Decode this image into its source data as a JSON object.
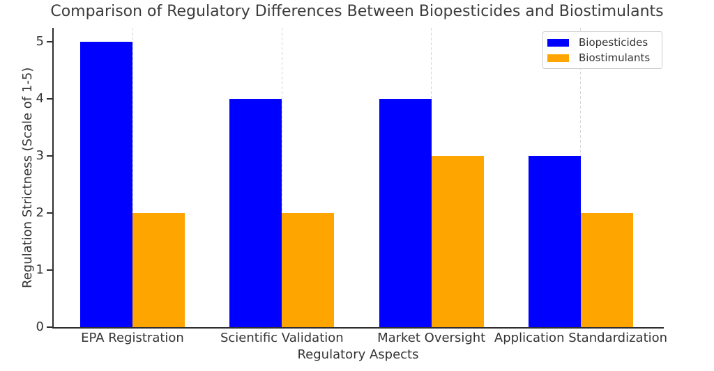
{
  "chart_data": {
    "type": "bar",
    "title": "Comparison of Regulatory Differences Between Biopesticides and Biostimulants",
    "categories": [
      "EPA Registration",
      "Scientific Validation",
      "Market Oversight",
      "Application Standardization"
    ],
    "series": [
      {
        "name": "Biopesticides",
        "color": "#0000ff",
        "values": [
          5,
          4,
          4,
          3
        ]
      },
      {
        "name": "Biostimulants",
        "color": "#ffa500",
        "values": [
          2,
          2,
          3,
          2
        ]
      }
    ],
    "xlabel": "Regulatory Aspects",
    "ylabel": "Regulation Strictness (Scale of 1-5)",
    "yticks": [
      0,
      1,
      2,
      3,
      4,
      5
    ],
    "ylim": [
      0,
      5.25
    ],
    "bar_width": 0.35,
    "grid": "vertical-dashed-at-category-centers",
    "legend_position": "upper right",
    "spine_color": "#2e2e2e",
    "gridline_color": "#d4d4d4"
  }
}
